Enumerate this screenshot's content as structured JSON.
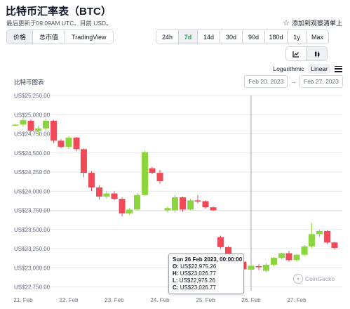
{
  "header": {
    "title": "比特币汇率表（BTC）",
    "updated": "最后更新于09:09AM UTC。目前 USD。",
    "watchlist_label": "添加到观察清单上"
  },
  "view_tabs": [
    {
      "label": "价格",
      "active": true
    },
    {
      "label": "总市值",
      "active": false
    },
    {
      "label": "TradingView",
      "active": false
    }
  ],
  "range_tabs": [
    {
      "label": "24h",
      "active": false
    },
    {
      "label": "7d",
      "active": true
    },
    {
      "label": "14d",
      "active": false
    },
    {
      "label": "30d",
      "active": false
    },
    {
      "label": "90d",
      "active": false
    },
    {
      "label": "180d",
      "active": false
    },
    {
      "label": "1y",
      "active": false
    },
    {
      "label": "Max",
      "active": false
    }
  ],
  "chart_types": [
    {
      "name": "line-chart-icon",
      "active": false
    },
    {
      "name": "candlestick-icon",
      "active": true
    }
  ],
  "scale": {
    "logarithmic": "Logarithmic",
    "linear": "Linear",
    "active": "linear"
  },
  "chart_title": "比特币图表",
  "date_range": {
    "from": "Feb 20, 2023",
    "to": "Feb 27, 2023",
    "arrow": "→"
  },
  "tooltip": {
    "date": "Sun 26 Feb 2023, 00:00:00",
    "o_label": "O:",
    "o_value": "US$22,975.26",
    "h_label": "H:",
    "h_value": "US$23,026.77",
    "l_label": "L:",
    "l_value": "US$22,975.26",
    "c_label": "C:",
    "c_value": "US$23,026.77"
  },
  "branding": {
    "label": "CoinGecko"
  },
  "colors": {
    "up": "#8bd63d",
    "down": "#f04a58",
    "grid": "#e5e7eb",
    "axis_text": "#6b7280",
    "crosshair": "#9ca3af"
  },
  "chart_data": {
    "type": "candlestick",
    "title": "比特币图表",
    "ylim": [
      22700,
      25250
    ],
    "y_ticks": [
      {
        "value": 25250,
        "label": "US$25,250.00"
      },
      {
        "value": 25000,
        "label": "US$25,000.00"
      },
      {
        "value": 24750,
        "label": "US$24,750.00"
      },
      {
        "value": 24500,
        "label": "US$24,500.00"
      },
      {
        "value": 24250,
        "label": "US$24,250.00"
      },
      {
        "value": 24000,
        "label": "US$24,000.00"
      },
      {
        "value": 23750,
        "label": "US$23,750.00"
      },
      {
        "value": 23500,
        "label": "US$23,500.00"
      },
      {
        "value": 23250,
        "label": "US$23,250.00"
      },
      {
        "value": 23000,
        "label": "US$23,000.00"
      },
      {
        "value": 22750,
        "label": "US$22,750.00"
      }
    ],
    "x_ticks": [
      {
        "value": 21,
        "label": "21. Feb"
      },
      {
        "value": 22,
        "label": "22. Feb"
      },
      {
        "value": 23,
        "label": "23. Feb"
      },
      {
        "value": 24,
        "label": "24. Feb"
      },
      {
        "value": 25,
        "label": "25. Feb"
      },
      {
        "value": 26,
        "label": "26. Feb"
      },
      {
        "value": 27,
        "label": "27. Feb"
      }
    ],
    "xlim": [
      20.8,
      28.0
    ],
    "crosshair_x": 26.0,
    "candles": [
      {
        "t": 20.83,
        "o": 24860,
        "h": 24880,
        "l": 24850,
        "c": 24870
      },
      {
        "t": 21.0,
        "o": 24870,
        "h": 24960,
        "l": 24840,
        "c": 24930
      },
      {
        "t": 21.17,
        "o": 24920,
        "h": 24940,
        "l": 24770,
        "c": 24790
      },
      {
        "t": 21.33,
        "o": 24790,
        "h": 24850,
        "l": 24720,
        "c": 24820
      },
      {
        "t": 21.5,
        "o": 24820,
        "h": 24950,
        "l": 24790,
        "c": 24920
      },
      {
        "t": 21.67,
        "o": 24920,
        "h": 24930,
        "l": 24630,
        "c": 24660
      },
      {
        "t": 21.83,
        "o": 24660,
        "h": 24680,
        "l": 24560,
        "c": 24580
      },
      {
        "t": 22.0,
        "o": 24580,
        "h": 24720,
        "l": 24550,
        "c": 24700
      },
      {
        "t": 22.17,
        "o": 24700,
        "h": 24710,
        "l": 24520,
        "c": 24550
      },
      {
        "t": 22.33,
        "o": 24550,
        "h": 24560,
        "l": 24180,
        "c": 24240
      },
      {
        "t": 22.5,
        "o": 24240,
        "h": 24260,
        "l": 24000,
        "c": 24050
      },
      {
        "t": 22.67,
        "o": 24050,
        "h": 24080,
        "l": 23890,
        "c": 23930
      },
      {
        "t": 22.83,
        "o": 23930,
        "h": 24000,
        "l": 23900,
        "c": 23970
      },
      {
        "t": 23.0,
        "o": 23970,
        "h": 24000,
        "l": 23880,
        "c": 23900
      },
      {
        "t": 23.17,
        "o": 23900,
        "h": 23920,
        "l": 23670,
        "c": 23710
      },
      {
        "t": 23.33,
        "o": 23710,
        "h": 23780,
        "l": 23690,
        "c": 23760
      },
      {
        "t": 23.5,
        "o": 23760,
        "h": 23970,
        "l": 23750,
        "c": 23950
      },
      {
        "t": 23.67,
        "o": 23950,
        "h": 24530,
        "l": 23940,
        "c": 24510
      },
      {
        "t": 23.83,
        "o": 24300,
        "h": 24320,
        "l": 24220,
        "c": 24240
      },
      {
        "t": 24.0,
        "o": 24240,
        "h": 24280,
        "l": 24100,
        "c": 24130
      },
      {
        "t": 24.17,
        "o": 23750,
        "h": 23800,
        "l": 23720,
        "c": 23780
      },
      {
        "t": 24.33,
        "o": 23750,
        "h": 23950,
        "l": 23720,
        "c": 23920
      },
      {
        "t": 24.5,
        "o": 23920,
        "h": 23930,
        "l": 23730,
        "c": 23760
      },
      {
        "t": 24.67,
        "o": 23760,
        "h": 23900,
        "l": 23750,
        "c": 23880
      },
      {
        "t": 24.83,
        "o": 23880,
        "h": 23950,
        "l": 23840,
        "c": 23870
      },
      {
        "t": 25.0,
        "o": 23870,
        "h": 23880,
        "l": 23770,
        "c": 23790
      },
      {
        "t": 25.17,
        "o": 23790,
        "h": 23800,
        "l": 23740,
        "c": 23750
      },
      {
        "t": 25.33,
        "o": 23400,
        "h": 23420,
        "l": 23250,
        "c": 23270
      },
      {
        "t": 25.5,
        "o": 23270,
        "h": 23280,
        "l": 23120,
        "c": 23140
      },
      {
        "t": 25.67,
        "o": 23140,
        "h": 23160,
        "l": 23060,
        "c": 23080
      },
      {
        "t": 25.83,
        "o": 23080,
        "h": 23100,
        "l": 22960,
        "c": 22980
      },
      {
        "t": 26.0,
        "o": 22975.26,
        "h": 23026.77,
        "l": 22975.26,
        "c": 23026.77
      },
      {
        "t": 26.17,
        "o": 23020,
        "h": 23050,
        "l": 22970,
        "c": 23010
      },
      {
        "t": 26.33,
        "o": 22960,
        "h": 23060,
        "l": 22940,
        "c": 23040
      },
      {
        "t": 26.5,
        "o": 23040,
        "h": 23140,
        "l": 23020,
        "c": 23130
      },
      {
        "t": 26.67,
        "o": 23130,
        "h": 23200,
        "l": 23110,
        "c": 23190
      },
      {
        "t": 26.83,
        "o": 23190,
        "h": 23220,
        "l": 23080,
        "c": 23100
      },
      {
        "t": 27.0,
        "o": 23100,
        "h": 23180,
        "l": 23080,
        "c": 23170
      },
      {
        "t": 27.17,
        "o": 23170,
        "h": 23300,
        "l": 23150,
        "c": 23280
      },
      {
        "t": 27.33,
        "o": 23280,
        "h": 23580,
        "l": 23260,
        "c": 23440
      },
      {
        "t": 27.5,
        "o": 23440,
        "h": 23500,
        "l": 23400,
        "c": 23480
      },
      {
        "t": 27.67,
        "o": 23480,
        "h": 23490,
        "l": 23310,
        "c": 23330
      },
      {
        "t": 27.83,
        "o": 23330,
        "h": 23340,
        "l": 23240,
        "c": 23260
      }
    ]
  }
}
